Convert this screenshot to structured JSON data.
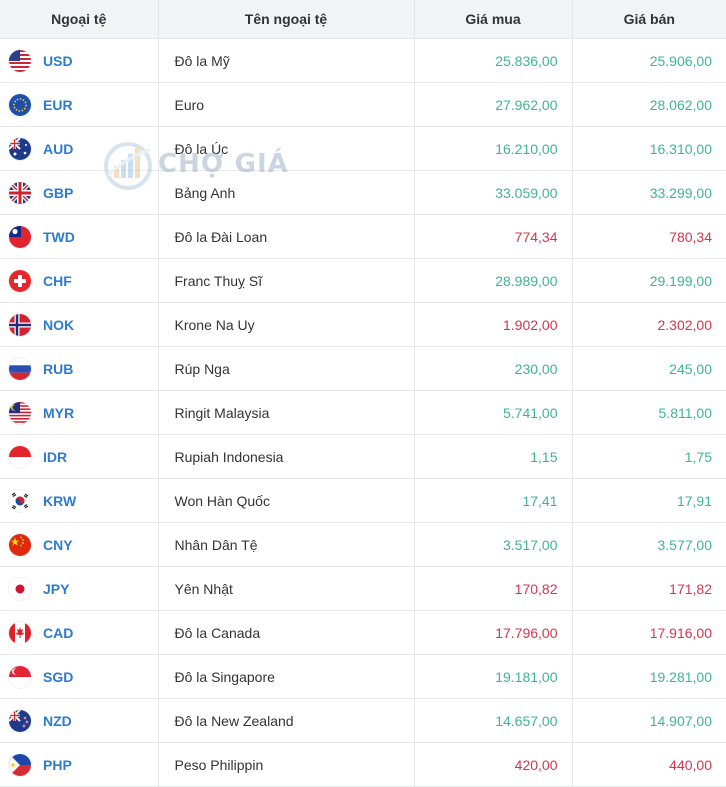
{
  "header": {
    "code_col": "Ngoại tệ",
    "name_col": "Tên ngoại tệ",
    "buy_col": "Giá mua",
    "sell_col": "Giá bán"
  },
  "watermark": {
    "text": "CHỢ GIÁ"
  },
  "colors": {
    "up": "#3fb39a",
    "down": "#d1374f",
    "code": "#2b7bd3"
  },
  "rates": [
    {
      "code": "USD",
      "name": "Đô la Mỹ",
      "buy": "25.836,00",
      "sell": "25.906,00",
      "trend": "up",
      "flag": "us-flag-icon"
    },
    {
      "code": "EUR",
      "name": "Euro",
      "buy": "27.962,00",
      "sell": "28.062,00",
      "trend": "up",
      "flag": "eu-flag-icon"
    },
    {
      "code": "AUD",
      "name": "Đô la Úc",
      "buy": "16.210,00",
      "sell": "16.310,00",
      "trend": "up",
      "flag": "au-flag-icon"
    },
    {
      "code": "GBP",
      "name": "Bảng Anh",
      "buy": "33.059,00",
      "sell": "33.299,00",
      "trend": "up",
      "flag": "gb-flag-icon"
    },
    {
      "code": "TWD",
      "name": "Đô la Đài Loan",
      "buy": "774,34",
      "sell": "780,34",
      "trend": "down",
      "flag": "tw-flag-icon"
    },
    {
      "code": "CHF",
      "name": "Franc Thuỵ Sĩ",
      "buy": "28.989,00",
      "sell": "29.199,00",
      "trend": "up",
      "flag": "ch-flag-icon"
    },
    {
      "code": "NOK",
      "name": "Krone Na Uy",
      "buy": "1.902,00",
      "sell": "2.302,00",
      "trend": "down",
      "flag": "no-flag-icon"
    },
    {
      "code": "RUB",
      "name": "Rúp Nga",
      "buy": "230,00",
      "sell": "245,00",
      "trend": "up",
      "flag": "ru-flag-icon"
    },
    {
      "code": "MYR",
      "name": "Ringit Malaysia",
      "buy": "5.741,00",
      "sell": "5.811,00",
      "trend": "up",
      "flag": "my-flag-icon"
    },
    {
      "code": "IDR",
      "name": "Rupiah Indonesia",
      "buy": "1,15",
      "sell": "1,75",
      "trend": "up",
      "flag": "id-flag-icon"
    },
    {
      "code": "KRW",
      "name": "Won Hàn Quốc",
      "buy": "17,41",
      "sell": "17,91",
      "trend": "up",
      "flag": "kr-flag-icon"
    },
    {
      "code": "CNY",
      "name": "Nhân Dân Tệ",
      "buy": "3.517,00",
      "sell": "3.577,00",
      "trend": "up",
      "flag": "cn-flag-icon"
    },
    {
      "code": "JPY",
      "name": "Yên Nhật",
      "buy": "170,82",
      "sell": "171,82",
      "trend": "down",
      "flag": "jp-flag-icon"
    },
    {
      "code": "CAD",
      "name": "Đô la Canada",
      "buy": "17.796,00",
      "sell": "17.916,00",
      "trend": "down",
      "flag": "ca-flag-icon"
    },
    {
      "code": "SGD",
      "name": "Đô la Singapore",
      "buy": "19.181,00",
      "sell": "19.281,00",
      "trend": "up",
      "flag": "sg-flag-icon"
    },
    {
      "code": "NZD",
      "name": "Đô la New Zealand",
      "buy": "14.657,00",
      "sell": "14.907,00",
      "trend": "up",
      "flag": "nz-flag-icon"
    },
    {
      "code": "PHP",
      "name": "Peso Philippin",
      "buy": "420,00",
      "sell": "440,00",
      "trend": "down",
      "flag": "ph-flag-icon"
    }
  ]
}
